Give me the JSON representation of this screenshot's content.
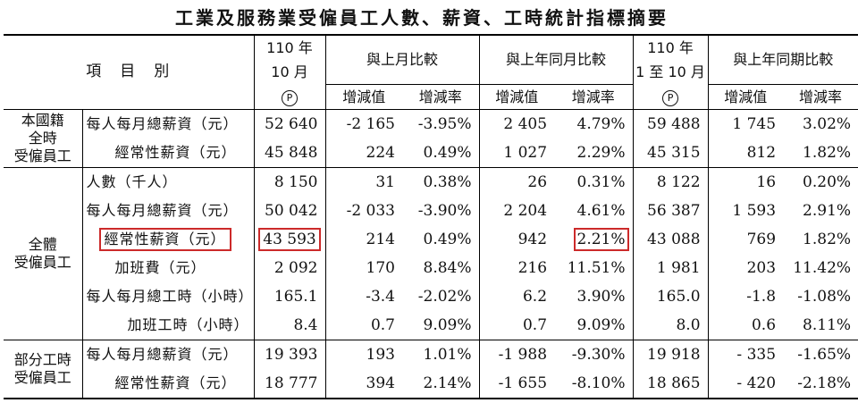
{
  "title": "工業及服務業受僱員工人數、薪資、工時統計指標摘要",
  "header": {
    "item_col": "項　目　別",
    "oct_year": "110 年",
    "oct_month": "10 月",
    "prelim_mark": "P",
    "mom_group": "與上月比較",
    "yoy_group": "與上年同月比較",
    "ytd_year": "110 年",
    "ytd_range": "1 至 10 月",
    "ytd_yoy_group": "與上年同期比較",
    "change_value": "增減值",
    "change_rate": "增減率"
  },
  "groups": {
    "national": "本國籍\n全時\n受僱員工",
    "all": "全體\n受僱員工",
    "parttime": "部分工時\n受僱員工"
  },
  "rows": [
    {
      "label": "每人每月總薪資（元）",
      "v": [
        "52 640",
        "-2 165",
        "-3.95%",
        "2 405",
        "4.79%",
        "59 488",
        "1 745",
        "3.02%"
      ]
    },
    {
      "label": "經常性薪資（元）",
      "v": [
        "45 848",
        "224",
        "0.49%",
        "1 027",
        "2.29%",
        "45 315",
        "812",
        "1.82%"
      ]
    },
    {
      "label": "人數（千人）",
      "v": [
        "8 150",
        "31",
        "0.38%",
        "26",
        "0.31%",
        "8 122",
        "16",
        "0.20%"
      ]
    },
    {
      "label": "每人每月總薪資（元）",
      "v": [
        "50 042",
        "-2 033",
        "-3.90%",
        "2 204",
        "4.61%",
        "56 387",
        "1 593",
        "2.91%"
      ]
    },
    {
      "label": "經常性薪資（元）",
      "v": [
        "43 593",
        "214",
        "0.49%",
        "942",
        "2.21%",
        "43 088",
        "769",
        "1.82%"
      ]
    },
    {
      "label": "加班費（元）",
      "v": [
        "2 092",
        "170",
        "8.84%",
        "216",
        "11.51%",
        "1 981",
        "203",
        "11.42%"
      ]
    },
    {
      "label": "每人每月總工時（小時）",
      "v": [
        "165.1",
        "-3.4",
        "-2.02%",
        "6.2",
        "3.90%",
        "165.0",
        "-1.8",
        "-1.08%"
      ]
    },
    {
      "label": "加班工時（小時）",
      "v": [
        "8.4",
        "0.7",
        "9.09%",
        "0.7",
        "9.09%",
        "8.0",
        "0.6",
        "8.11%"
      ]
    },
    {
      "label": "每人每月總薪資（元）",
      "v": [
        "19 393",
        "193",
        "1.01%",
        "-1 988",
        "-9.30%",
        "19 918",
        "- 335",
        "-1.65%"
      ]
    },
    {
      "label": "經常性薪資（元）",
      "v": [
        "18 777",
        "394",
        "2.14%",
        "-1 655",
        "-8.10%",
        "18 865",
        "- 420",
        "-2.18%"
      ]
    }
  ],
  "highlight_color": "#cc2a2a"
}
